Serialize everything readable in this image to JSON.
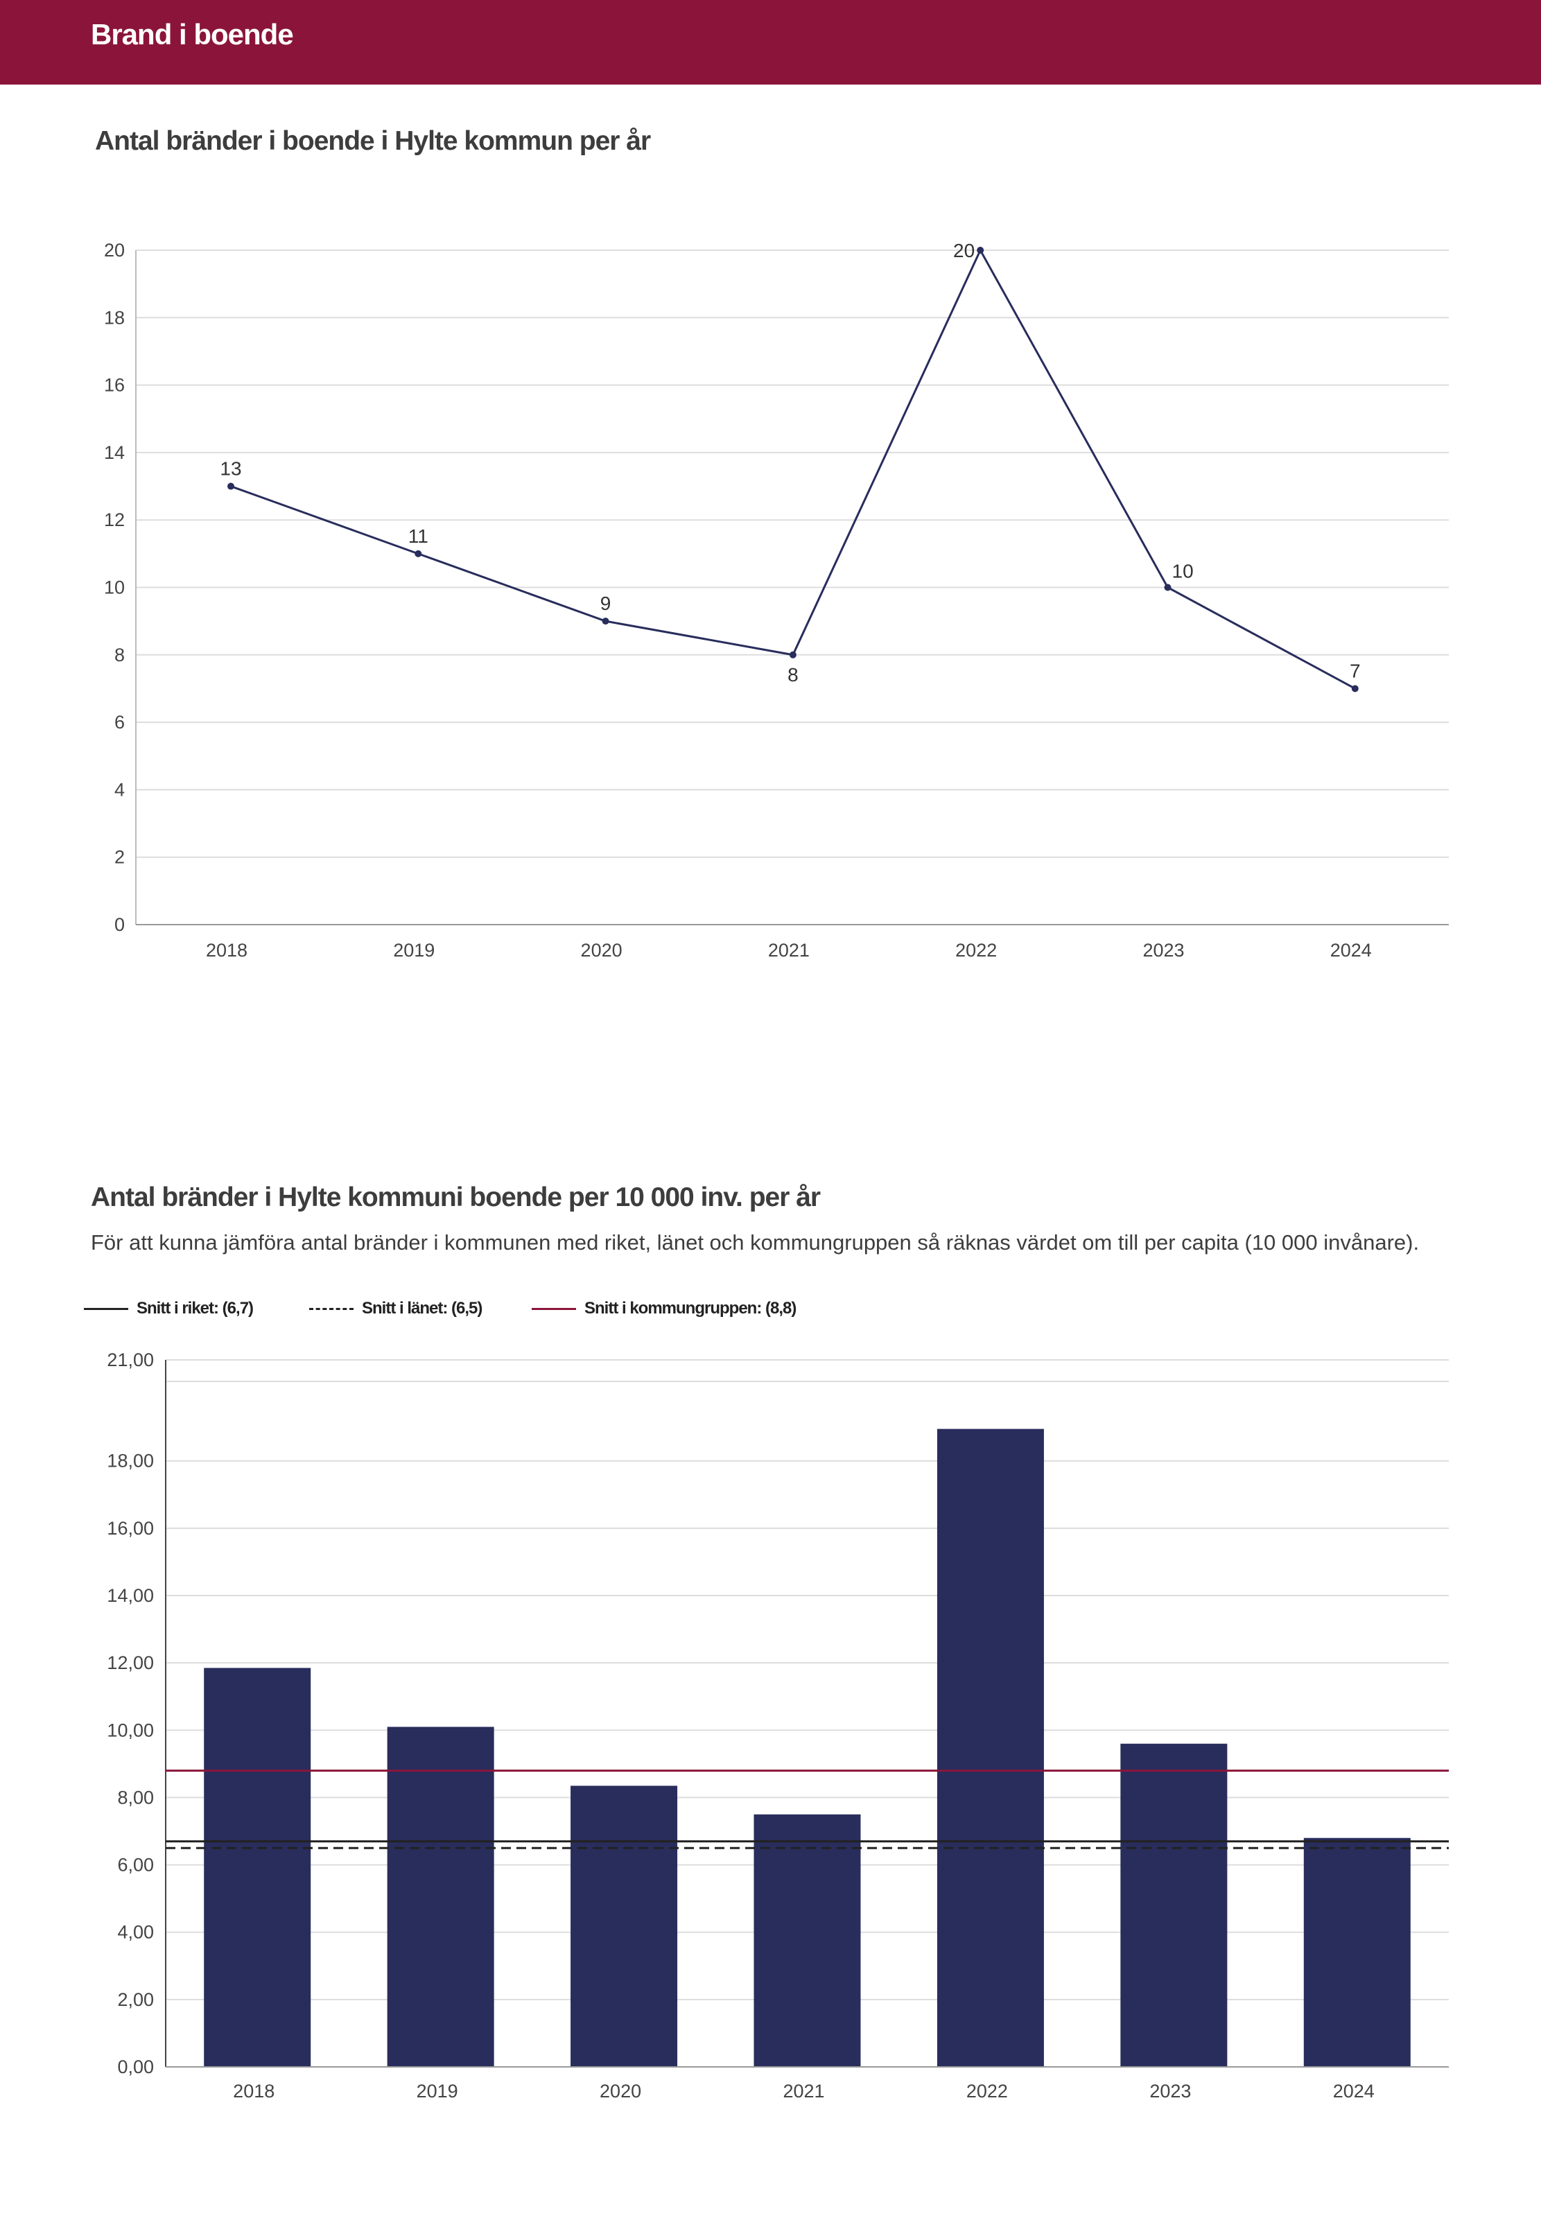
{
  "header": {
    "title": "Brand i boende"
  },
  "chart1": {
    "title": "Antal bränder i boende i Hylte kommun per år"
  },
  "chart2": {
    "title": "Antal bränder i Hylte kommuni boende per 10 000 inv. per år",
    "subtitle": "För att kunna jämföra antal bränder i kommunen med riket, länet och kommungruppen så räknas värdet om till per capita (10 000 invånare).",
    "legend": [
      {
        "label": "Snitt i riket: (6,7)"
      },
      {
        "label": "Snitt i länet: (6,5)"
      },
      {
        "label": "Snitt i kommungruppen: (8,8)"
      }
    ]
  },
  "colors": {
    "header": "#8b153a",
    "series": "#282d5c",
    "kommungrupp": "#8b153a",
    "riket": "#222222",
    "lanet": "#222222",
    "grid": "#dddddd"
  },
  "chart_data": [
    {
      "type": "line",
      "title": "Antal bränder i boende i Hylte kommun per år",
      "categories": [
        "2018",
        "2019",
        "2020",
        "2021",
        "2022",
        "2023",
        "2024"
      ],
      "values": [
        13,
        11,
        9,
        8,
        20,
        10,
        7
      ],
      "data_labels": [
        "13",
        "11",
        "9",
        "8",
        "20",
        "10",
        "7"
      ],
      "ylim": [
        0,
        20
      ],
      "yticks": [
        0,
        2,
        4,
        6,
        8,
        10,
        12,
        14,
        16,
        18,
        20
      ],
      "ytick_labels": [
        "0",
        "2",
        "4",
        "6",
        "8",
        "10",
        "12",
        "14",
        "16",
        "18",
        "20"
      ],
      "grid": true
    },
    {
      "type": "bar",
      "title": "Antal bränder i Hylte kommuni boende per 10 000 inv. per år",
      "categories": [
        "2018",
        "2019",
        "2020",
        "2021",
        "2022",
        "2023",
        "2024"
      ],
      "values": [
        11.85,
        10.1,
        8.35,
        7.5,
        18.95,
        9.6,
        6.8
      ],
      "ylim": [
        0,
        21
      ],
      "yticks": [
        0,
        2,
        4,
        6,
        8,
        10,
        12,
        14,
        16,
        18,
        21
      ],
      "ytick_labels": [
        "0,00",
        "2,00",
        "4,00",
        "6,00",
        "8,00",
        "10,00",
        "12,00",
        "14,00",
        "16,00",
        "18,00",
        "21,00"
      ],
      "reference_lines": [
        {
          "name": "Snitt i riket",
          "value": 6.7,
          "style": "solid"
        },
        {
          "name": "Snitt i länet",
          "value": 6.5,
          "style": "dashed"
        },
        {
          "name": "Snitt i kommungruppen",
          "value": 8.8,
          "style": "solid-red"
        }
      ],
      "grid": true
    }
  ]
}
